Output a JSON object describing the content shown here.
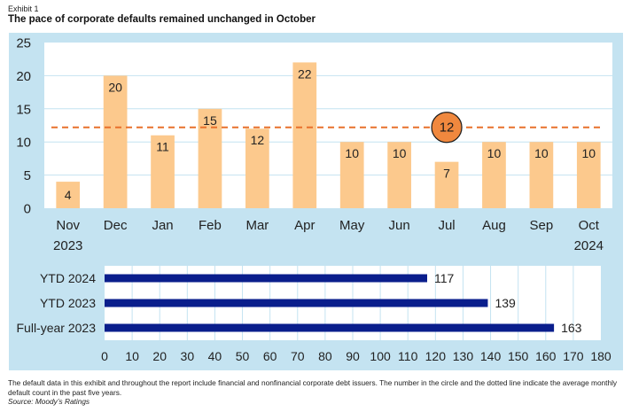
{
  "header": {
    "exhibit": "Exhibit 1",
    "title": "The pace of corporate defaults remained unchanged in October"
  },
  "colors": {
    "panel_bg": "#c4e3f1",
    "plot_bg": "#ffffff",
    "bar": "#fcc98d",
    "average_line": "#e8712c",
    "average_circle": "#f0883e",
    "horizontal_bar": "#0a1e8c",
    "grid": "#c4e3f1"
  },
  "chart_data": [
    {
      "type": "bar",
      "categories": [
        "Nov",
        "Dec",
        "Jan",
        "Feb",
        "Mar",
        "Apr",
        "May",
        "Jun",
        "Jul",
        "Aug",
        "Sep",
        "Oct"
      ],
      "year_labels": {
        "first": "2023",
        "last": "2024"
      },
      "values": [
        4,
        20,
        11,
        15,
        12,
        22,
        10,
        10,
        7,
        10,
        10,
        10
      ],
      "data_labels": [
        "4",
        "20",
        "11",
        "15",
        "12",
        "22",
        "10",
        "10",
        "7",
        "10",
        "10",
        "10"
      ],
      "average": {
        "value": 12.2,
        "label": "12",
        "marker_category": "Jul"
      },
      "ylim": [
        0,
        25
      ],
      "yticks": [
        "0",
        "5",
        "10",
        "15",
        "20",
        "25"
      ],
      "grid": true
    },
    {
      "type": "bar",
      "orientation": "horizontal",
      "categories": [
        "YTD 2024",
        "YTD 2023",
        "Full-year 2023"
      ],
      "values": [
        117,
        139,
        163
      ],
      "data_labels": [
        "117",
        "139",
        "163"
      ],
      "xlim": [
        0,
        180
      ],
      "xticks": [
        "0",
        "10",
        "20",
        "30",
        "40",
        "50",
        "60",
        "70",
        "80",
        "90",
        "100",
        "110",
        "120",
        "130",
        "140",
        "150",
        "160",
        "170",
        "180"
      ],
      "grid": true
    }
  ],
  "footer": {
    "note": "The default data in this exhibit and throughout the report include financial and nonfinancial corporate debt issuers. The number in the circle and the dotted line indicate the average monthly default count in the past five years.",
    "source": "Source: Moody’s Ratings"
  }
}
